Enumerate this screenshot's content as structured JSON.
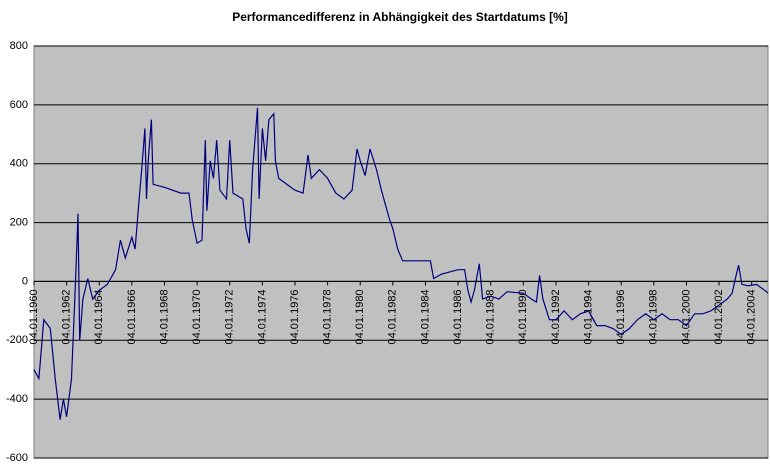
{
  "chart_data": {
    "type": "line",
    "title": "Performancedifferenz in Abhängigkeit des Startdatums [%]",
    "xlim": [
      1960,
      2005
    ],
    "xticks": [
      {
        "value": 1960,
        "label": "04.01.1960"
      },
      {
        "value": 1962,
        "label": "04.01.1962"
      },
      {
        "value": 1964,
        "label": "04.01.1964"
      },
      {
        "value": 1966,
        "label": "04.01.1966"
      },
      {
        "value": 1968,
        "label": "04.01.1968"
      },
      {
        "value": 1970,
        "label": "04.01.1970"
      },
      {
        "value": 1972,
        "label": "04.01.1972"
      },
      {
        "value": 1974,
        "label": "04.01.1974"
      },
      {
        "value": 1976,
        "label": "04.01.1976"
      },
      {
        "value": 1978,
        "label": "04.01.1978"
      },
      {
        "value": 1980,
        "label": "04.01.1980"
      },
      {
        "value": 1982,
        "label": "04.01.1982"
      },
      {
        "value": 1984,
        "label": "04.01.1984"
      },
      {
        "value": 1986,
        "label": "04.01.1986"
      },
      {
        "value": 1988,
        "label": "04.01.1988"
      },
      {
        "value": 1990,
        "label": "04.01.1990"
      },
      {
        "value": 1992,
        "label": "04.01.1992"
      },
      {
        "value": 1994,
        "label": "04.01.1994"
      },
      {
        "value": 1996,
        "label": "04.01.1996"
      },
      {
        "value": 1998,
        "label": "04.01.1998"
      },
      {
        "value": 2000,
        "label": "04.01.2000"
      },
      {
        "value": 2002,
        "label": "04.01.2002"
      },
      {
        "value": 2004,
        "label": "04.01.2004"
      }
    ],
    "ylim": [
      -600,
      800
    ],
    "yticks": [
      -600,
      -400,
      -200,
      0,
      200,
      400,
      600,
      800
    ],
    "grid": true,
    "color": "#000080",
    "background": "#c0c0c0",
    "x": [
      1960.0,
      1960.3,
      1960.6,
      1961.0,
      1961.3,
      1961.6,
      1961.8,
      1962.0,
      1962.3,
      1962.5,
      1962.6,
      1962.7,
      1962.8,
      1963.0,
      1963.3,
      1963.6,
      1964.0,
      1964.5,
      1965.0,
      1965.3,
      1965.6,
      1966.0,
      1966.2,
      1966.4,
      1966.6,
      1966.8,
      1966.9,
      1967.0,
      1967.2,
      1967.3,
      1968.0,
      1969.0,
      1969.5,
      1969.7,
      1970.0,
      1970.3,
      1970.5,
      1970.6,
      1970.8,
      1971.0,
      1971.2,
      1971.4,
      1971.8,
      1972.0,
      1972.2,
      1972.8,
      1973.0,
      1973.2,
      1973.4,
      1973.7,
      1973.8,
      1974.0,
      1974.2,
      1974.4,
      1974.7,
      1974.8,
      1975.0,
      1976.0,
      1976.5,
      1976.8,
      1977.0,
      1977.5,
      1978.0,
      1978.5,
      1979.0,
      1979.5,
      1979.8,
      1980.0,
      1980.3,
      1980.6,
      1981.0,
      1981.3,
      1981.8,
      1982.0,
      1982.3,
      1982.6,
      1983.5,
      1984.3,
      1984.5,
      1985.0,
      1986.0,
      1986.4,
      1986.6,
      1986.8,
      1987.0,
      1987.3,
      1987.5,
      1988.0,
      1988.5,
      1989.0,
      1990.0,
      1990.5,
      1990.8,
      1991.0,
      1991.2,
      1991.6,
      1992.0,
      1992.5,
      1993.0,
      1993.5,
      1994.0,
      1994.5,
      1995.0,
      1995.5,
      1996.0,
      1996.5,
      1997.0,
      1997.5,
      1998.0,
      1998.5,
      1999.0,
      1999.5,
      2000.0,
      2000.5,
      2001.0,
      2001.5,
      2002.0,
      2002.5,
      2002.8,
      2003.0,
      2003.2,
      2003.4,
      2003.8,
      2004.3,
      2004.8,
      2005.0
    ],
    "values": [
      -300,
      -330,
      -130,
      -160,
      -330,
      -470,
      -400,
      -460,
      -330,
      -60,
      80,
      230,
      -200,
      -60,
      10,
      -60,
      -30,
      -10,
      40,
      140,
      80,
      150,
      110,
      250,
      380,
      520,
      280,
      410,
      550,
      330,
      320,
      300,
      300,
      210,
      130,
      140,
      480,
      240,
      410,
      350,
      480,
      310,
      280,
      480,
      300,
      280,
      180,
      130,
      380,
      590,
      280,
      520,
      410,
      550,
      570,
      410,
      350,
      310,
      300,
      430,
      350,
      380,
      350,
      300,
      280,
      310,
      450,
      410,
      360,
      450,
      380,
      310,
      210,
      180,
      110,
      70,
      70,
      70,
      10,
      25,
      40,
      40,
      -30,
      -70,
      -30,
      60,
      -60,
      -50,
      -60,
      -35,
      -40,
      -60,
      -70,
      20,
      -60,
      -130,
      -130,
      -100,
      -130,
      -110,
      -100,
      -150,
      -150,
      -160,
      -180,
      -160,
      -130,
      -110,
      -130,
      -110,
      -130,
      -130,
      -150,
      -110,
      -110,
      -100,
      -80,
      -60,
      -40,
      10,
      55,
      -10,
      -15,
      -10,
      -30,
      -40
    ]
  }
}
